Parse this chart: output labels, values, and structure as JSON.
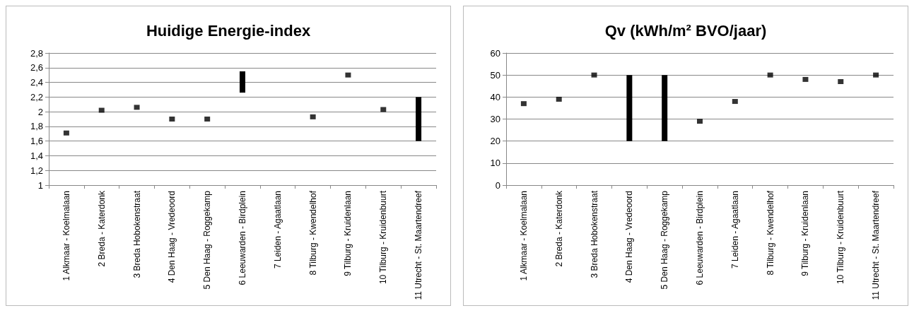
{
  "chart_data": [
    {
      "type": "bar",
      "title": "Huidige Energie-index",
      "categories": [
        "1 Alkmaar - Koelmalaan",
        "2 Breda - Katerdonk",
        "3 Breda Hobokenstraat",
        "4 Den Haag - Vredeoord",
        "5 Den Haag - Roggekamp",
        "6 Leeuwarden - Birdplein",
        "7 Leiden - Agaatlaan",
        "8 Tilburg - Kwendelhof",
        "9 Tilburg - Kruidenlaan",
        "10 Tilburg - Kruidenbuurt",
        "11 Utrecht - St. Maartendreef"
      ],
      "series": [
        {
          "type": "scatter",
          "color": "#000000",
          "values": [
            1.71,
            2.02,
            2.06,
            1.9,
            1.9,
            null,
            null,
            1.93,
            2.5,
            2.03,
            null
          ]
        },
        {
          "color": "#000000",
          "base": [
            null,
            null,
            null,
            null,
            null,
            2.26,
            null,
            null,
            null,
            null,
            1.6
          ],
          "values": [
            null,
            null,
            null,
            null,
            null,
            0.29,
            null,
            null,
            null,
            null,
            0.6
          ]
        }
      ],
      "marker": "square",
      "grid": "y",
      "ylim": [
        1,
        2.8
      ],
      "yticks": [
        1,
        {
          "value": 1.2,
          "label": "1,2"
        },
        {
          "value": 1.4,
          "label": "1,4"
        },
        {
          "value": 1.6,
          "label": "1,6"
        },
        {
          "value": 1.8,
          "label": "1,8"
        },
        2,
        {
          "value": 2.2,
          "label": "2,2"
        },
        {
          "value": 2.4,
          "label": "2,4"
        },
        {
          "value": 2.6,
          "label": "2,6"
        },
        {
          "value": 2.8,
          "label": "2,8"
        }
      ]
    },
    {
      "type": "bar",
      "title": "Qv (kWh/m² BVO/jaar)",
      "categories": [
        "1 Alkmaar - Koelmalaan",
        "2 Breda - Katerdonk",
        "3 Breda Hobokenstraat",
        "4 Den Haag - Vredeoord",
        "5 Den Haag - Roggekamp",
        "6 Leeuwarden - Birdplein",
        "7 Leiden - Agaatlaan",
        "8 Tilburg - Kwendelhof",
        "9 Tilburg - Kruidenlaan",
        "10 Tilburg - Kruidenbuurt",
        "11 Utrecht - St. Maartendreef"
      ],
      "series": [
        {
          "type": "scatter",
          "color": "#000000",
          "values": [
            37,
            39,
            50,
            null,
            null,
            29,
            38,
            50,
            48,
            47,
            50
          ]
        },
        {
          "color": "#000000",
          "base": [
            null,
            null,
            null,
            20,
            20,
            null,
            null,
            null,
            null,
            null,
            null
          ],
          "values": [
            null,
            null,
            null,
            30,
            30,
            null,
            null,
            null,
            null,
            null,
            null
          ]
        }
      ],
      "marker": "square",
      "grid": "y",
      "ylim": [
        0,
        60
      ],
      "yticks": [
        0,
        10,
        20,
        30,
        40,
        50,
        60
      ]
    }
  ]
}
